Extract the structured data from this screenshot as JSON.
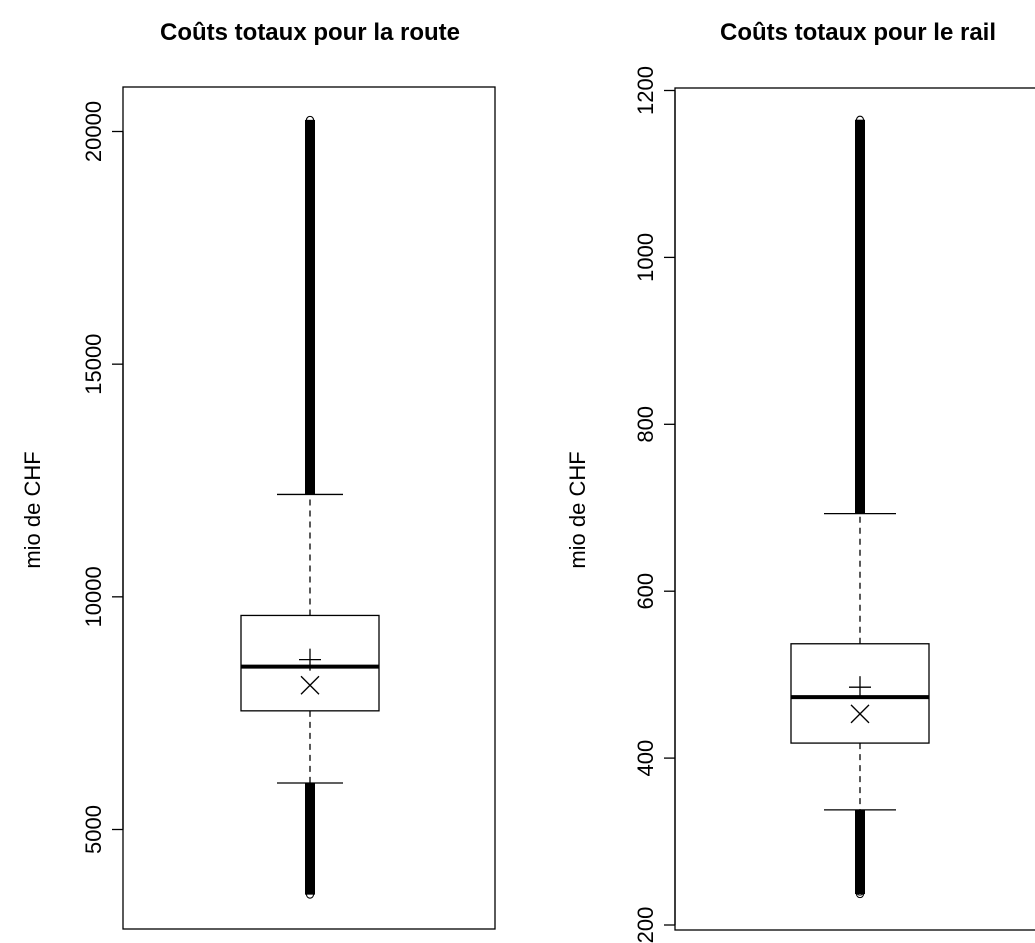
{
  "chart_data": [
    {
      "type": "boxplot",
      "title": "Coûts totaux pour la route",
      "ylabel": "mio de CHF",
      "ylim": [
        3100,
        21000
      ],
      "yticks": [
        5000,
        10000,
        15000,
        20000
      ],
      "box": {
        "whisker_low": 6000,
        "q1": 7550,
        "median": 8500,
        "mean_plus": 8650,
        "mean_cross": 8100,
        "q3": 9600,
        "whisker_high": 12200
      },
      "outliers_low": {
        "min": 3600,
        "max": 6000
      },
      "outliers_high": {
        "min": 12200,
        "max": 20250
      },
      "sparse_outliers_high": [
        17600,
        17900,
        18200,
        18400,
        18550,
        18700,
        18900,
        19050,
        19200,
        19550,
        19800,
        20000,
        20250
      ],
      "sparse_outliers_low": [
        3600,
        3700
      ]
    },
    {
      "type": "boxplot",
      "title": "Coûts totaux pour le rail",
      "ylabel": "mio de CHF",
      "ylim": [
        200,
        1200
      ],
      "yticks": [
        200,
        400,
        600,
        800,
        1000,
        1200
      ],
      "box": {
        "whisker_low": 338,
        "q1": 418,
        "median": 473,
        "mean_plus": 485,
        "mean_cross": 453,
        "q3": 537,
        "whisker_high": 693
      },
      "outliers_low": {
        "min": 237,
        "max": 338
      },
      "outliers_high": {
        "min": 693,
        "max": 1165
      },
      "sparse_outliers_high": [
        1050,
        1060,
        1070,
        1080,
        1090,
        1100,
        1110,
        1120,
        1130,
        1140,
        1150,
        1160,
        1165
      ],
      "sparse_outliers_low": [
        237,
        240
      ]
    }
  ]
}
